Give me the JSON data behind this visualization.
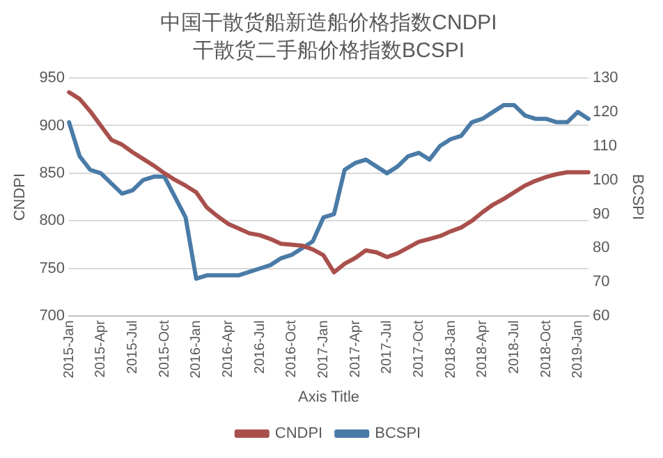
{
  "chart_data": {
    "type": "line",
    "title": "中国干散货船新造船价格指数CNDPI",
    "subtitle": "干散货二手船价格指数BCSPI",
    "xlabel": "Axis Title",
    "ylabel": "CNDPI",
    "y2label": "BCSPI",
    "categories": [
      "2015-Jan",
      null,
      null,
      "2015-Apr",
      null,
      null,
      "2015-Jul",
      null,
      null,
      "2015-Oct",
      null,
      null,
      "2016-Jan",
      null,
      null,
      "2016-Apr",
      null,
      null,
      "2016-Jul",
      null,
      null,
      "2016-Oct",
      null,
      null,
      "2017-Jan",
      null,
      null,
      "2017-Apr",
      null,
      null,
      "2017-Jul",
      null,
      null,
      "2017-Oct",
      null,
      null,
      "2018-Jan",
      null,
      null,
      "2018-Apr",
      null,
      null,
      "2018-Jul",
      null,
      null,
      "2018-Oct",
      null,
      null,
      "2019-Jan",
      null
    ],
    "series": [
      {
        "name": "CNDPI",
        "color": "#a9504c",
        "values": [
          935,
          928,
          915,
          900,
          885,
          880,
          872,
          865,
          858,
          850,
          843,
          837,
          830,
          814,
          805,
          797,
          792,
          787,
          785,
          781,
          776,
          775,
          774,
          770,
          764,
          746,
          755,
          761,
          769,
          767,
          762,
          766,
          772,
          778,
          781,
          784,
          789,
          793,
          800,
          809,
          817,
          823,
          830,
          837,
          842,
          846,
          849,
          851,
          851,
          851
        ]
      },
      {
        "name": "BCSPI",
        "color": "#4a7ba7",
        "axis": "y2",
        "values": [
          117,
          107,
          103,
          102,
          99,
          96,
          97,
          100,
          101,
          101,
          95,
          89,
          71,
          72,
          72,
          72,
          72,
          73,
          74,
          75,
          77,
          78,
          80,
          82,
          89,
          90,
          103,
          105,
          106,
          104,
          102,
          104,
          107,
          108,
          106,
          110,
          112,
          113,
          117,
          118,
          120,
          122,
          122,
          119,
          118,
          118,
          117,
          117,
          120,
          118
        ]
      }
    ],
    "ylim": [
      700,
      950
    ],
    "yticks": [
      700,
      750,
      800,
      850,
      900,
      950
    ],
    "y2lim": [
      60,
      130
    ],
    "y2ticks": [
      60,
      70,
      80,
      90,
      100,
      110,
      120,
      130
    ],
    "grid": "y",
    "legend": "bottom",
    "marker": "none",
    "line_style": "solid"
  }
}
